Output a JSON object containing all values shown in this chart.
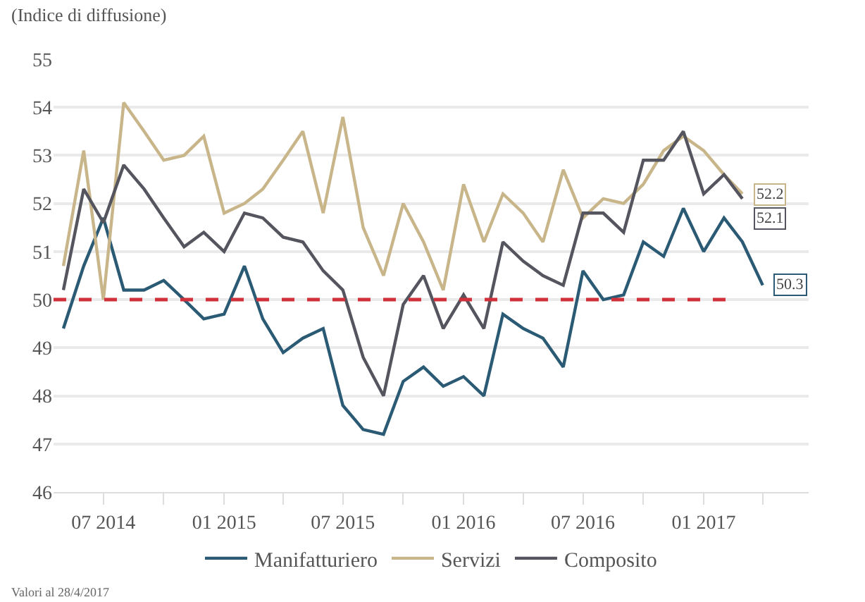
{
  "chart_data": {
    "type": "line",
    "ylabel": "(Indice di diffusione)",
    "x": [
      "2014-05",
      "2014-06",
      "2014-07",
      "2014-08",
      "2014-09",
      "2014-10",
      "2014-11",
      "2014-12",
      "2015-01",
      "2015-02",
      "2015-03",
      "2015-04",
      "2015-05",
      "2015-06",
      "2015-07",
      "2015-08",
      "2015-09",
      "2015-10",
      "2015-11",
      "2015-12",
      "2016-01",
      "2016-02",
      "2016-03",
      "2016-04",
      "2016-05",
      "2016-06",
      "2016-07",
      "2016-08",
      "2016-09",
      "2016-10",
      "2016-11",
      "2016-12",
      "2017-01",
      "2017-02",
      "2017-03",
      "2017-04"
    ],
    "series": [
      {
        "name": "Manifatturiero",
        "color": "#2b5a74",
        "values": [
          49.4,
          50.7,
          51.7,
          50.2,
          50.2,
          50.4,
          50.0,
          49.6,
          49.7,
          50.7,
          49.6,
          48.9,
          49.2,
          49.4,
          47.8,
          47.3,
          47.2,
          48.3,
          48.6,
          48.2,
          48.4,
          48.0,
          49.7,
          49.4,
          49.2,
          48.6,
          50.6,
          50.0,
          50.1,
          51.2,
          50.9,
          51.9,
          51.0,
          51.7,
          51.2,
          50.3
        ],
        "value_labels": [
          null,
          null,
          null,
          null,
          null,
          null,
          null,
          null,
          null,
          null,
          null,
          null,
          null,
          null,
          null,
          null,
          null,
          null,
          null,
          null,
          null,
          null,
          null,
          null,
          null,
          null,
          null,
          null,
          null,
          null,
          null,
          null,
          null,
          null,
          null,
          "50.3"
        ]
      },
      {
        "name": "Servizi",
        "color": "#c8b68a",
        "values": [
          50.7,
          53.1,
          50.0,
          54.1,
          53.5,
          52.9,
          53.0,
          53.4,
          51.8,
          52.0,
          52.3,
          52.9,
          53.5,
          51.8,
          53.8,
          51.5,
          50.5,
          52.0,
          51.2,
          50.2,
          52.4,
          51.2,
          52.2,
          51.8,
          51.2,
          52.7,
          51.7,
          52.1,
          52.0,
          52.4,
          53.1,
          53.4,
          53.1,
          52.6,
          52.2,
          null
        ],
        "value_labels": [
          null,
          null,
          null,
          null,
          null,
          null,
          null,
          null,
          null,
          null,
          null,
          null,
          null,
          null,
          null,
          null,
          null,
          null,
          null,
          null,
          null,
          null,
          null,
          null,
          null,
          null,
          null,
          null,
          null,
          null,
          null,
          null,
          null,
          null,
          "52.2",
          null
        ]
      },
      {
        "name": "Composito",
        "color": "#55555f",
        "values": [
          50.2,
          52.3,
          51.6,
          52.8,
          52.3,
          51.7,
          51.1,
          51.4,
          51.0,
          51.8,
          51.7,
          51.3,
          51.2,
          50.6,
          50.2,
          48.8,
          48.0,
          49.9,
          50.5,
          49.4,
          50.1,
          49.4,
          51.2,
          50.8,
          50.5,
          50.3,
          51.8,
          51.8,
          51.4,
          52.9,
          52.9,
          53.5,
          52.2,
          52.6,
          52.1,
          null
        ],
        "value_labels": [
          null,
          null,
          null,
          null,
          null,
          null,
          null,
          null,
          null,
          null,
          null,
          null,
          null,
          null,
          null,
          null,
          null,
          null,
          null,
          null,
          null,
          null,
          null,
          null,
          null,
          null,
          null,
          null,
          null,
          null,
          null,
          null,
          null,
          null,
          "52.1",
          null
        ]
      }
    ],
    "xlim": [
      "2014-04-16",
      "2017-06-10"
    ],
    "xticks": [
      {
        "value": "2014-07",
        "label": "07 2014"
      },
      {
        "value": "2014-10",
        "label": null
      },
      {
        "value": "2015-01",
        "label": "01 2015"
      },
      {
        "value": "2015-04",
        "label": null
      },
      {
        "value": "2015-07",
        "label": "07 2015"
      },
      {
        "value": "2015-10",
        "label": null
      },
      {
        "value": "2016-01",
        "label": "01 2016"
      },
      {
        "value": "2016-04",
        "label": null
      },
      {
        "value": "2016-07",
        "label": "07 2016"
      },
      {
        "value": "2016-10",
        "label": null
      },
      {
        "value": "2017-01",
        "label": "01 2017"
      },
      {
        "value": "2017-04",
        "label": null
      }
    ],
    "ylim": [
      46,
      55
    ],
    "yticks": [
      46,
      47,
      48,
      49,
      50,
      51,
      52,
      53,
      54,
      55
    ],
    "grid": "y",
    "legend": "bottom",
    "marker": "none",
    "line_style": "solid",
    "ref_lines": [
      {
        "axis": "y",
        "value": 50,
        "label": null,
        "color": "#d0313a",
        "line_style": "dashed"
      }
    ],
    "annotations": [
      "Valori al 28/4/2017"
    ]
  }
}
